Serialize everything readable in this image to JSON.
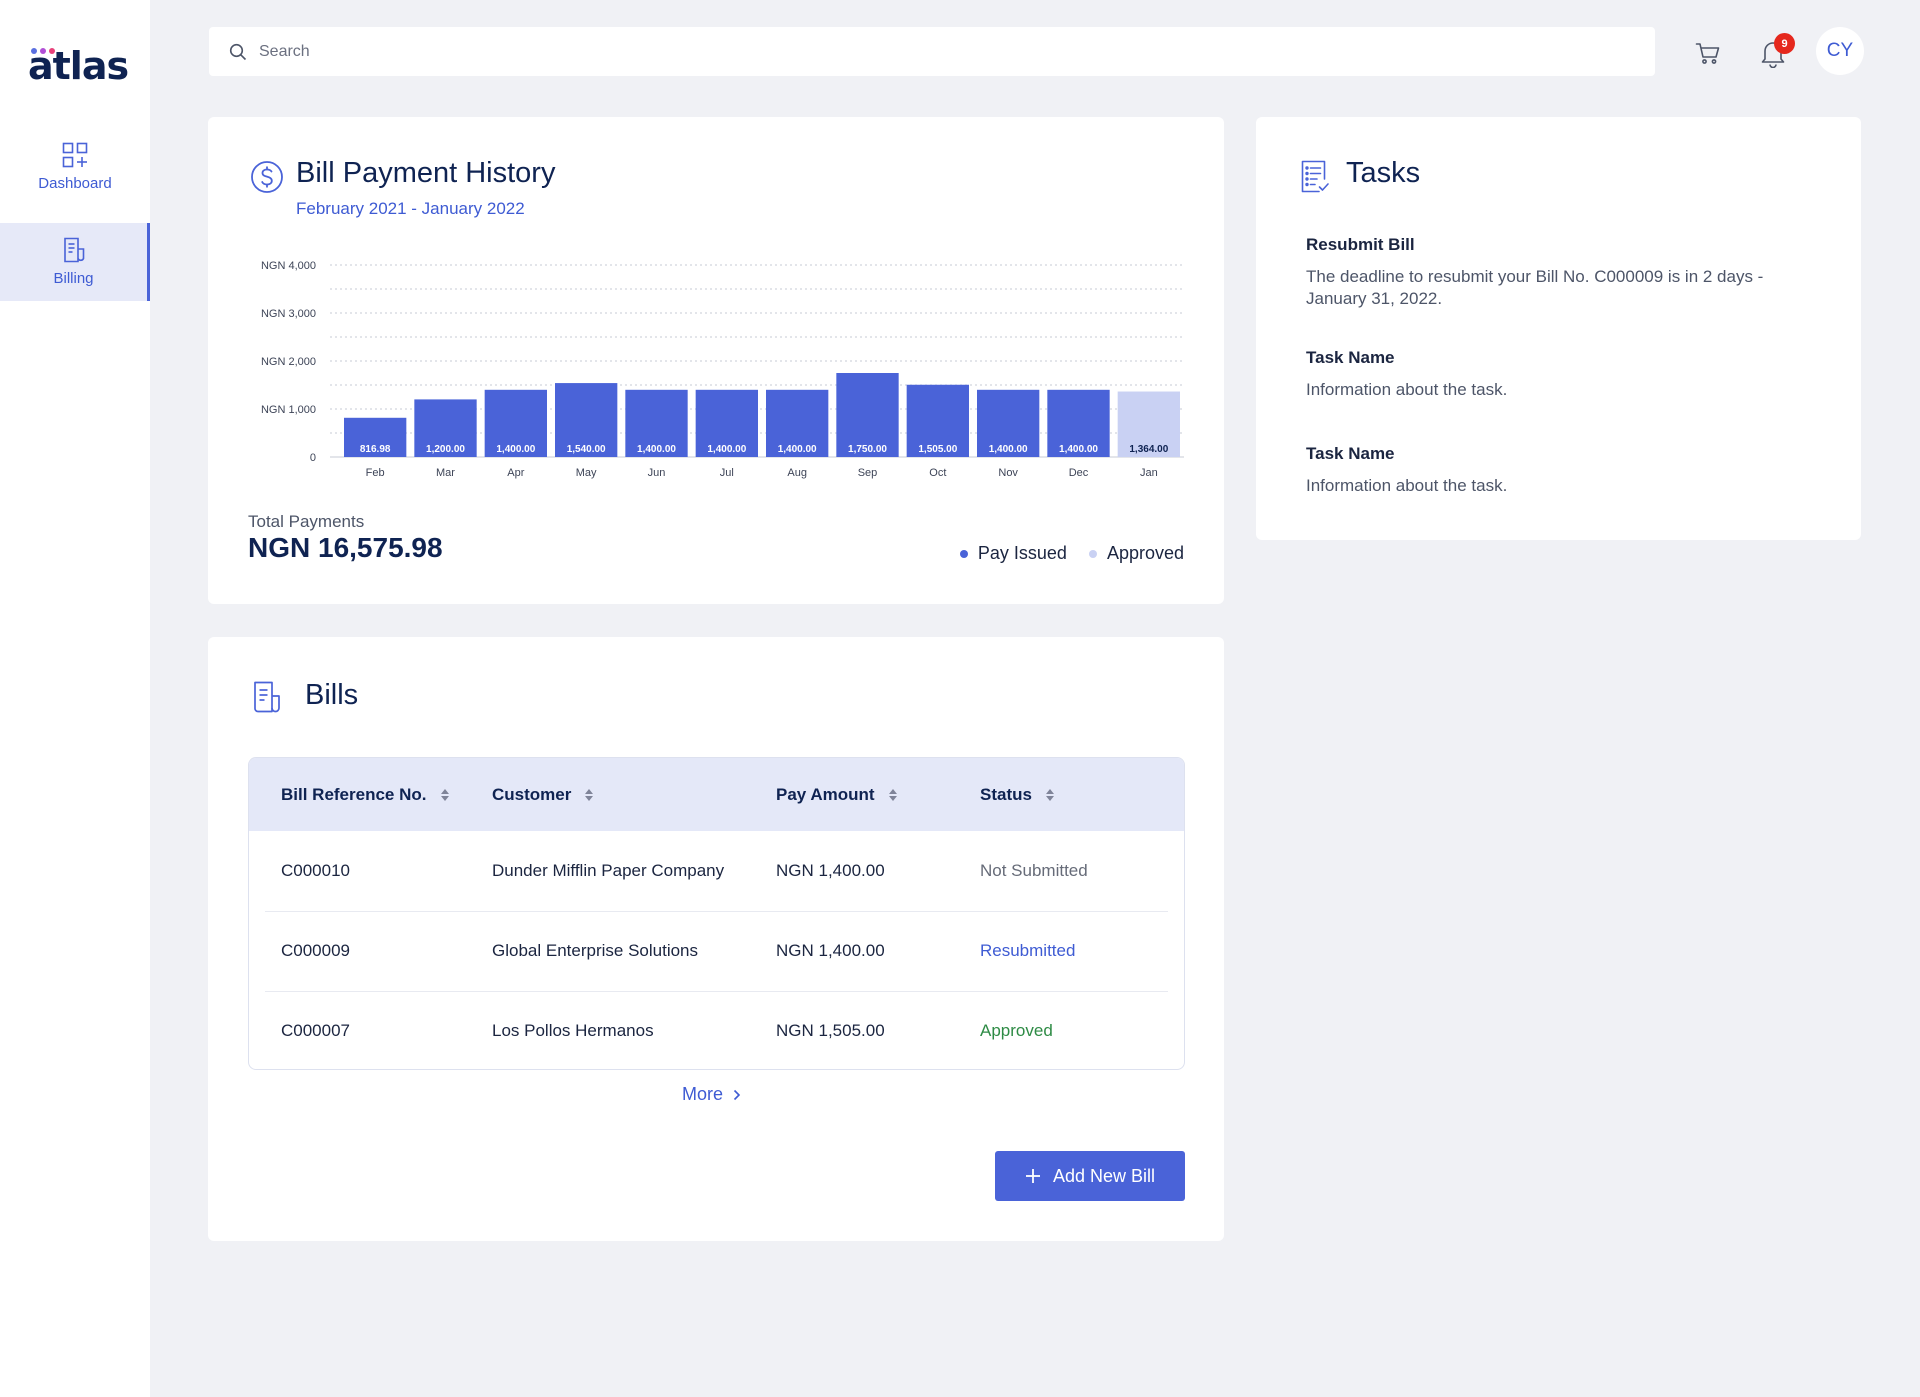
{
  "app": {
    "logo_text": "atlas",
    "logo_dot_colors": [
      "#5a6fe0",
      "#b14fd6",
      "#e8417a"
    ]
  },
  "sidebar": {
    "items": [
      {
        "label": "Dashboard",
        "icon": "dashboard-grid-icon",
        "active": false
      },
      {
        "label": "Billing",
        "icon": "billing-document-icon",
        "active": true
      }
    ]
  },
  "header": {
    "search_placeholder": "Search",
    "notification_count": "9",
    "avatar_initials": "CY"
  },
  "chart_card": {
    "title": "Bill Payment History",
    "subtitle": "February 2021 - January 2022",
    "total_label": "Total Payments",
    "total_value": "NGN 16,575.98",
    "legend": [
      {
        "label": "Pay Issued",
        "color": "#4a63d8"
      },
      {
        "label": "Approved",
        "color": "#c9d1f3"
      }
    ]
  },
  "chart_data": {
    "type": "bar",
    "categories": [
      "Feb",
      "Mar",
      "Apr",
      "May",
      "Jun",
      "Jul",
      "Aug",
      "Sep",
      "Oct",
      "Nov",
      "Dec",
      "Jan"
    ],
    "values": [
      816.98,
      1200.0,
      1400.0,
      1540.0,
      1400.0,
      1400.0,
      1400.0,
      1750.0,
      1505.0,
      1400.0,
      1400.0,
      1364.0
    ],
    "value_labels": [
      "816.98",
      "1,200.00",
      "1,400.00",
      "1,540.00",
      "1,400.00",
      "1,400.00",
      "1,400.00",
      "1,750.00",
      "1,505.00",
      "1,400.00",
      "1,400.00",
      "1,364.00"
    ],
    "series_status": [
      "Pay Issued",
      "Pay Issued",
      "Pay Issued",
      "Pay Issued",
      "Pay Issued",
      "Pay Issued",
      "Pay Issued",
      "Pay Issued",
      "Pay Issued",
      "Pay Issued",
      "Pay Issued",
      "Approved"
    ],
    "y_ticks": [
      0,
      1000,
      2000,
      3000,
      4000
    ],
    "y_tick_labels": [
      "0",
      "NGN 1,000",
      "NGN 2,000",
      "NGN 3,000",
      "NGN 4,000"
    ],
    "ylim": [
      0,
      4000
    ],
    "grid": true,
    "legend_position": "bottom-right",
    "colors": {
      "pay_issued": "#4a63d8",
      "approved": "#c9d1f3"
    }
  },
  "tasks": {
    "title": "Tasks",
    "items": [
      {
        "name": "Resubmit Bill",
        "description": "The deadline to resubmit your Bill No. C000009 is in 2 days - January 31, 2022."
      },
      {
        "name": "Task Name",
        "description": "Information about the task."
      },
      {
        "name": "Task Name",
        "description": "Information about the task."
      }
    ]
  },
  "bills": {
    "title": "Bills",
    "columns": [
      "Bill Reference No.",
      "Customer",
      "Pay Amount",
      "Status"
    ],
    "rows": [
      {
        "ref": "C000010",
        "customer": "Dunder Mifflin Paper Company",
        "amount": "NGN 1,400.00",
        "status": "Not Submitted",
        "status_color": "#666b78"
      },
      {
        "ref": "C000009",
        "customer": "Global Enterprise Solutions",
        "amount": "NGN 1,400.00",
        "status": "Resubmitted",
        "status_color": "#3e5bd3"
      },
      {
        "ref": "C000007",
        "customer": "Los Pollos Hermanos",
        "amount": "NGN 1,505.00",
        "status": "Approved",
        "status_color": "#2e8b45"
      }
    ],
    "more_label": "More",
    "add_button_label": "Add New Bill"
  }
}
